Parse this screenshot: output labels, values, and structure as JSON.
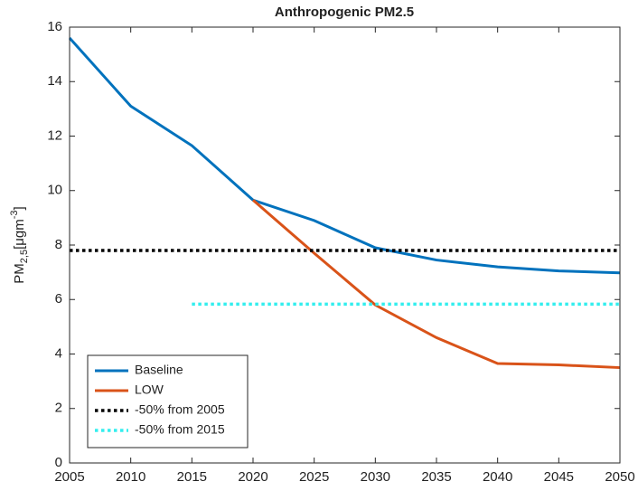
{
  "chart_data": {
    "type": "line",
    "title": "Anthropogenic PM2.5",
    "y_label": [
      "PM",
      "2,5",
      "[μgm",
      "-3",
      "]"
    ],
    "x": [
      2005,
      2010,
      2015,
      2020,
      2025,
      2030,
      2035,
      2040,
      2045,
      2050
    ],
    "series": [
      {
        "name": "Baseline",
        "color": "#0072bd",
        "style": "solid",
        "values": [
          15.6,
          13.1,
          11.65,
          9.65,
          8.9,
          7.9,
          7.45,
          7.2,
          7.05,
          6.98
        ]
      },
      {
        "name": "LOW",
        "color": "#d95319",
        "style": "solid",
        "values": [
          null,
          null,
          null,
          9.65,
          7.7,
          5.8,
          4.6,
          3.65,
          3.6,
          3.5
        ]
      },
      {
        "name": "-50% from 2005",
        "color": "#000000",
        "style": "dotted",
        "values": [
          7.8,
          7.8,
          7.8,
          7.8,
          7.8,
          7.8,
          7.8,
          7.8,
          7.8,
          7.8
        ]
      },
      {
        "name": "-50% from 2015",
        "color": "#33eeee",
        "style": "dotted",
        "values": [
          null,
          null,
          5.83,
          5.83,
          5.83,
          5.83,
          5.83,
          5.83,
          5.83,
          5.83
        ]
      }
    ],
    "xlim": [
      2005,
      2050
    ],
    "xticks": [
      2005,
      2010,
      2015,
      2020,
      2025,
      2030,
      2035,
      2040,
      2045,
      2050
    ],
    "ylim": [
      0,
      16
    ],
    "yticks": [
      0,
      2,
      4,
      6,
      8,
      10,
      12,
      14,
      16
    ],
    "legend": "southwest"
  }
}
